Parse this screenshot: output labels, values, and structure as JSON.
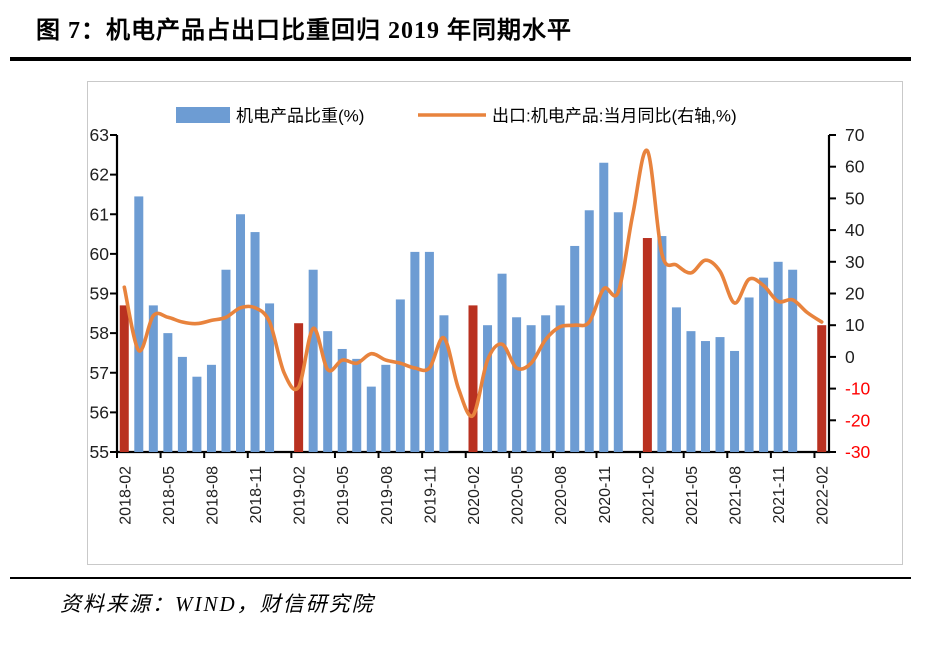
{
  "page": {
    "title": "图 7：机电产品占出口比重回归 2019 年同期水平",
    "source_note": "资料来源：WIND，财信研究院"
  },
  "chart_data": {
    "type": "combo-bar-line",
    "legend_position": "top",
    "grid": false,
    "categories": [
      "2018-02",
      "2018-03",
      "2018-04",
      "2018-05",
      "2018-06",
      "2018-07",
      "2018-08",
      "2018-09",
      "2018-10",
      "2018-11",
      "2018-12",
      "2019-01",
      "2019-02",
      "2019-03",
      "2019-04",
      "2019-05",
      "2019-06",
      "2019-07",
      "2019-08",
      "2019-09",
      "2019-10",
      "2019-11",
      "2019-12",
      "2020-01",
      "2020-02",
      "2020-03",
      "2020-04",
      "2020-05",
      "2020-06",
      "2020-07",
      "2020-08",
      "2020-09",
      "2020-10",
      "2020-11",
      "2020-12",
      "2021-01",
      "2021-02",
      "2021-03",
      "2021-04",
      "2021-05",
      "2021-06",
      "2021-07",
      "2021-08",
      "2021-09",
      "2021-10",
      "2021-11",
      "2021-12",
      "2022-01",
      "2022-02"
    ],
    "x_tick_labels": [
      "2018-02",
      "2018-05",
      "2018-08",
      "2018-11",
      "2019-02",
      "2019-05",
      "2019-08",
      "2019-11",
      "2020-02",
      "2020-05",
      "2020-08",
      "2020-11",
      "2021-02",
      "2021-05",
      "2021-08",
      "2021-11",
      "2022-02"
    ],
    "series": [
      {
        "name": "机电产品比重(%)",
        "type": "bar",
        "axis": "left",
        "color": "#6D9CD3",
        "february_highlight_color": "#B93120",
        "values": [
          58.7,
          61.45,
          58.7,
          58.0,
          57.4,
          56.9,
          57.2,
          59.6,
          61.0,
          60.55,
          58.75,
          null,
          58.25,
          59.6,
          58.05,
          57.6,
          57.35,
          56.65,
          57.2,
          58.85,
          60.05,
          60.05,
          58.45,
          null,
          58.7,
          58.2,
          59.5,
          58.4,
          58.2,
          58.45,
          58.7,
          60.2,
          61.1,
          62.3,
          61.05,
          null,
          60.4,
          60.45,
          58.65,
          58.05,
          57.8,
          57.9,
          57.55,
          58.9,
          59.4,
          59.8,
          59.6,
          null,
          58.2
        ]
      },
      {
        "name": "出口:机电产品:当月同比(右轴,%)",
        "type": "line",
        "axis": "right",
        "color": "#E8833D",
        "smooth": true,
        "values": [
          22,
          2,
          13,
          12.5,
          11,
          10.5,
          11.5,
          12.5,
          15.5,
          15.5,
          11,
          -5,
          -9.5,
          9,
          -4,
          -1,
          -2,
          1,
          -1,
          -2,
          -3.5,
          -3.5,
          6,
          -10,
          -18.5,
          -1,
          4,
          -3.5,
          -2,
          5.5,
          9.5,
          10,
          11,
          21.5,
          20.5,
          45,
          65,
          32.5,
          29,
          26.5,
          30.5,
          27,
          17,
          24.5,
          22.5,
          17.5,
          18,
          14,
          11
        ]
      }
    ],
    "left_axis": {
      "min": 55,
      "max": 63,
      "step": 1,
      "tick_labels": [
        "55",
        "56",
        "57",
        "58",
        "59",
        "60",
        "61",
        "62",
        "63"
      ],
      "label_color": "#1f1f1f"
    },
    "right_axis": {
      "min": -30,
      "max": 70,
      "step": 10,
      "tick_labels": [
        "-30",
        "-20",
        "-10",
        "0",
        "10",
        "20",
        "30",
        "40",
        "50",
        "60",
        "70"
      ],
      "label_color": "#1f1f1f",
      "negative_label_color": "#FF0000"
    }
  }
}
